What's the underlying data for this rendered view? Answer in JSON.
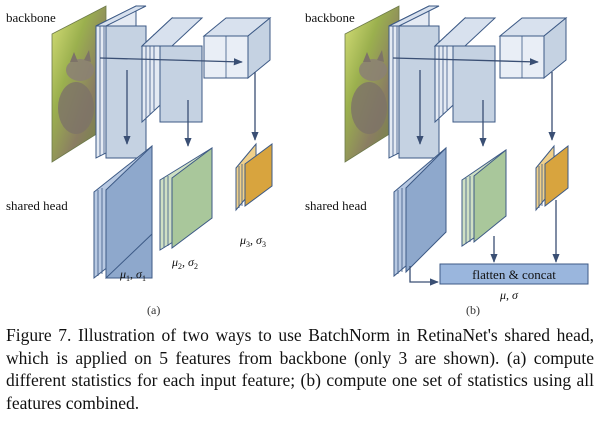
{
  "figure": {
    "panel_a": {
      "backbone_label": "backbone",
      "head_label": "shared head",
      "stat_1": {
        "symbols": "μ",
        "sub1": "1",
        "sep": ", σ",
        "sub2": "1"
      },
      "stat_2": {
        "symbols": "μ",
        "sub1": "2",
        "sep": ", σ",
        "sub2": "2"
      },
      "stat_3": {
        "symbols": "μ",
        "sub1": "3",
        "sep": ", σ",
        "sub2": "3"
      },
      "tag": "(a)"
    },
    "panel_b": {
      "backbone_label": "backbone",
      "head_label": "shared head",
      "concat_label": "flatten & concat",
      "stat": "μ, σ",
      "tag": "(b)"
    },
    "colors": {
      "backbone_face": "#c5d2e2",
      "backbone_side": "#e4eaf3",
      "head_blue": "#8ea8cc",
      "head_green": "#a9c79b",
      "head_orange": "#d8a43e",
      "concat_box": "#9ab6dd",
      "stroke": "#3d5a86"
    }
  },
  "caption": {
    "text": "Figure 7. Illustration of two ways to use BatchNorm in RetinaNet's shared head, which is applied on 5 features from backbone (only 3 are shown). (a) compute different statistics for each input feature; (b) compute one set of statistics using all features combined."
  }
}
